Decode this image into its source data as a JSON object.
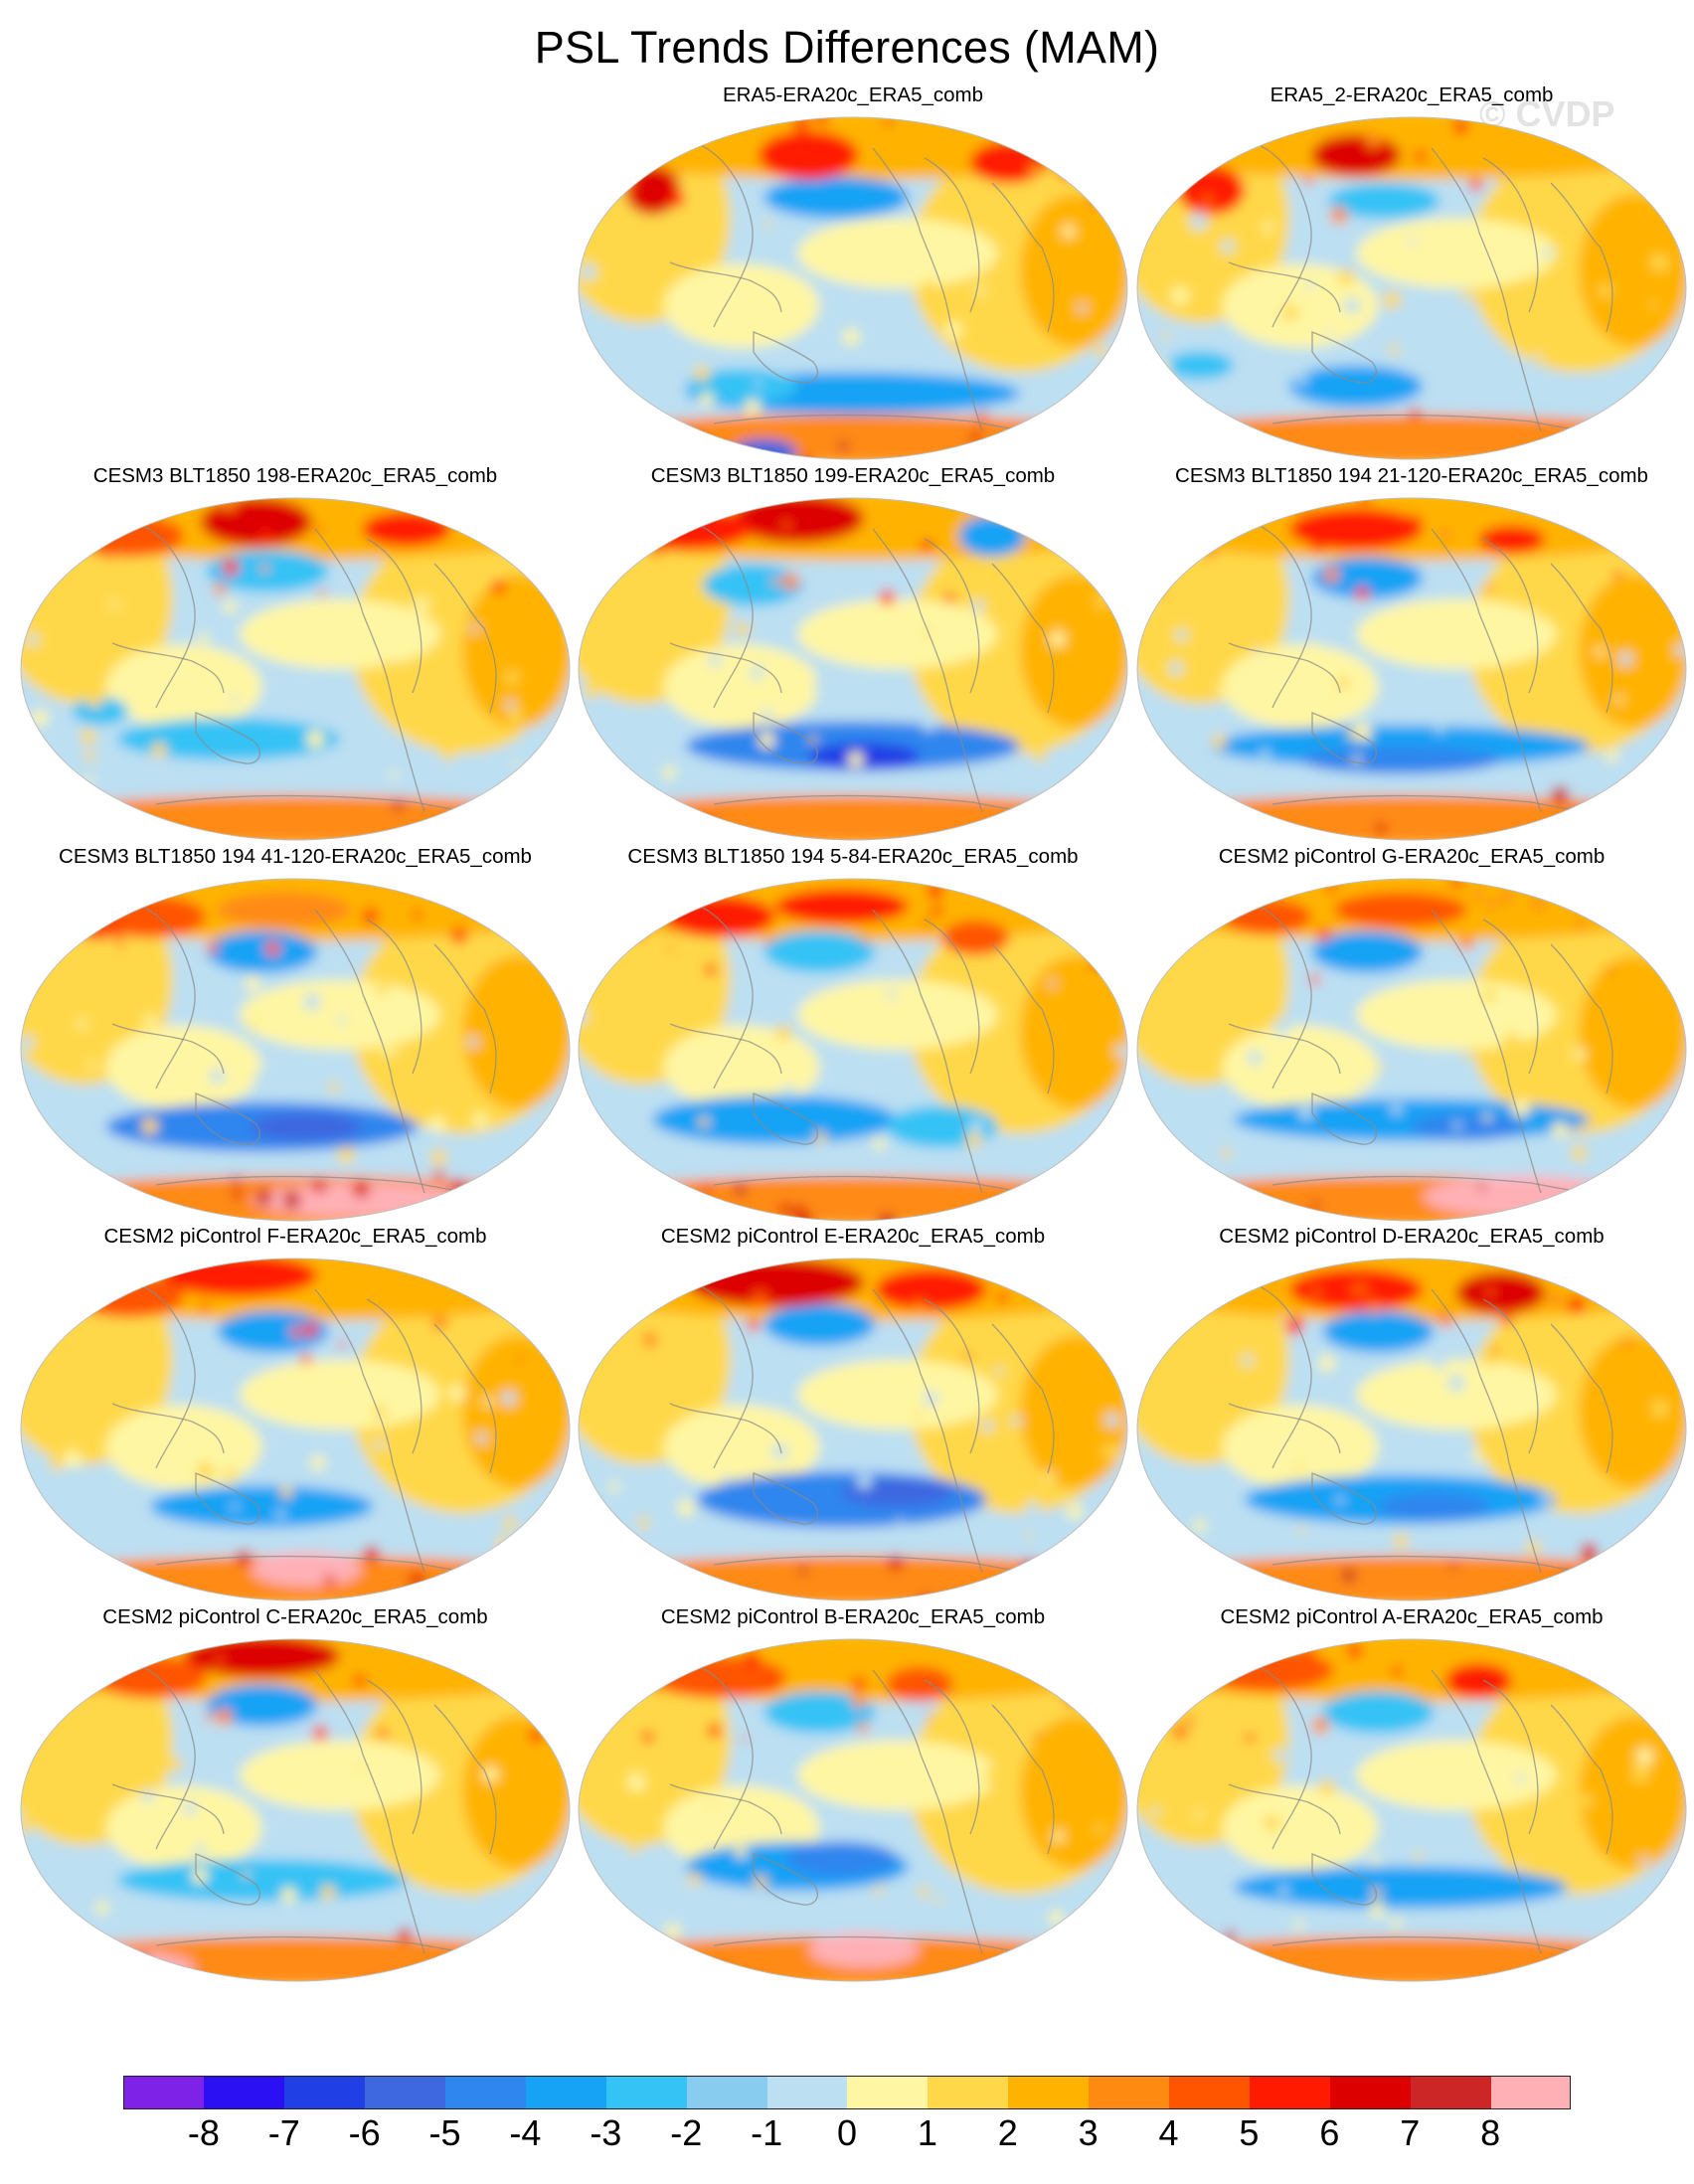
{
  "title": "PSL Trends Differences (MAM)",
  "watermark": "© CVDP",
  "chart_data": {
    "type": "map-contour-panels",
    "title": "PSL Trends Differences (MAM)",
    "projection": "Robinson (Pacific-centered global)",
    "panels": [
      {
        "title": "ERA5-ERA20c_ERA5_comb",
        "row": 0,
        "col": 1,
        "style": 0
      },
      {
        "title": "ERA5_2-ERA20c_ERA5_comb",
        "row": 0,
        "col": 2,
        "style": 1
      },
      {
        "title": "CESM3 BLT1850 198-ERA20c_ERA5_comb",
        "row": 1,
        "col": 0,
        "style": 2
      },
      {
        "title": "CESM3 BLT1850 199-ERA20c_ERA5_comb",
        "row": 1,
        "col": 1,
        "style": 3
      },
      {
        "title": "CESM3 BLT1850 194 21-120-ERA20c_ERA5_comb",
        "row": 1,
        "col": 2,
        "style": 4
      },
      {
        "title": "CESM3 BLT1850 194 41-120-ERA20c_ERA5_comb",
        "row": 2,
        "col": 0,
        "style": 5
      },
      {
        "title": "CESM3 BLT1850 194 5-84-ERA20c_ERA5_comb",
        "row": 2,
        "col": 1,
        "style": 6
      },
      {
        "title": "CESM2 piControl G-ERA20c_ERA5_comb",
        "row": 2,
        "col": 2,
        "style": 7
      },
      {
        "title": "CESM2 piControl F-ERA20c_ERA5_comb",
        "row": 3,
        "col": 0,
        "style": 8
      },
      {
        "title": "CESM2 piControl E-ERA20c_ERA5_comb",
        "row": 3,
        "col": 1,
        "style": 9
      },
      {
        "title": "CESM2 piControl D-ERA20c_ERA5_comb",
        "row": 3,
        "col": 2,
        "style": 10
      },
      {
        "title": "CESM2 piControl C-ERA20c_ERA5_comb",
        "row": 4,
        "col": 0,
        "style": 11
      },
      {
        "title": "CESM2 piControl B-ERA20c_ERA5_comb",
        "row": 4,
        "col": 1,
        "style": 12
      },
      {
        "title": "CESM2 piControl A-ERA20c_ERA5_comb",
        "row": 4,
        "col": 2,
        "style": 13
      }
    ],
    "colorbar": {
      "levels": [
        -8,
        -7,
        -6,
        -5,
        -4,
        -3,
        -2,
        -1,
        0,
        1,
        2,
        3,
        4,
        5,
        6,
        7,
        8
      ],
      "tick_labels": [
        "-8",
        "-7",
        "-6",
        "-5",
        "-4",
        "-3",
        "-2",
        "-1",
        "0",
        "1",
        "2",
        "3",
        "4",
        "5",
        "6",
        "7",
        "8"
      ],
      "colors": [
        "#7e22e8",
        "#2a10f2",
        "#2040e6",
        "#3d68e0",
        "#2e86ee",
        "#16a2f5",
        "#35c2f5",
        "#88cdef",
        "#bcdff2",
        "#fff6a3",
        "#ffd84a",
        "#ffb300",
        "#ff8a12",
        "#ff5500",
        "#ff1a00",
        "#dd0000",
        "#cc2626",
        "#ffb0b5"
      ]
    }
  }
}
